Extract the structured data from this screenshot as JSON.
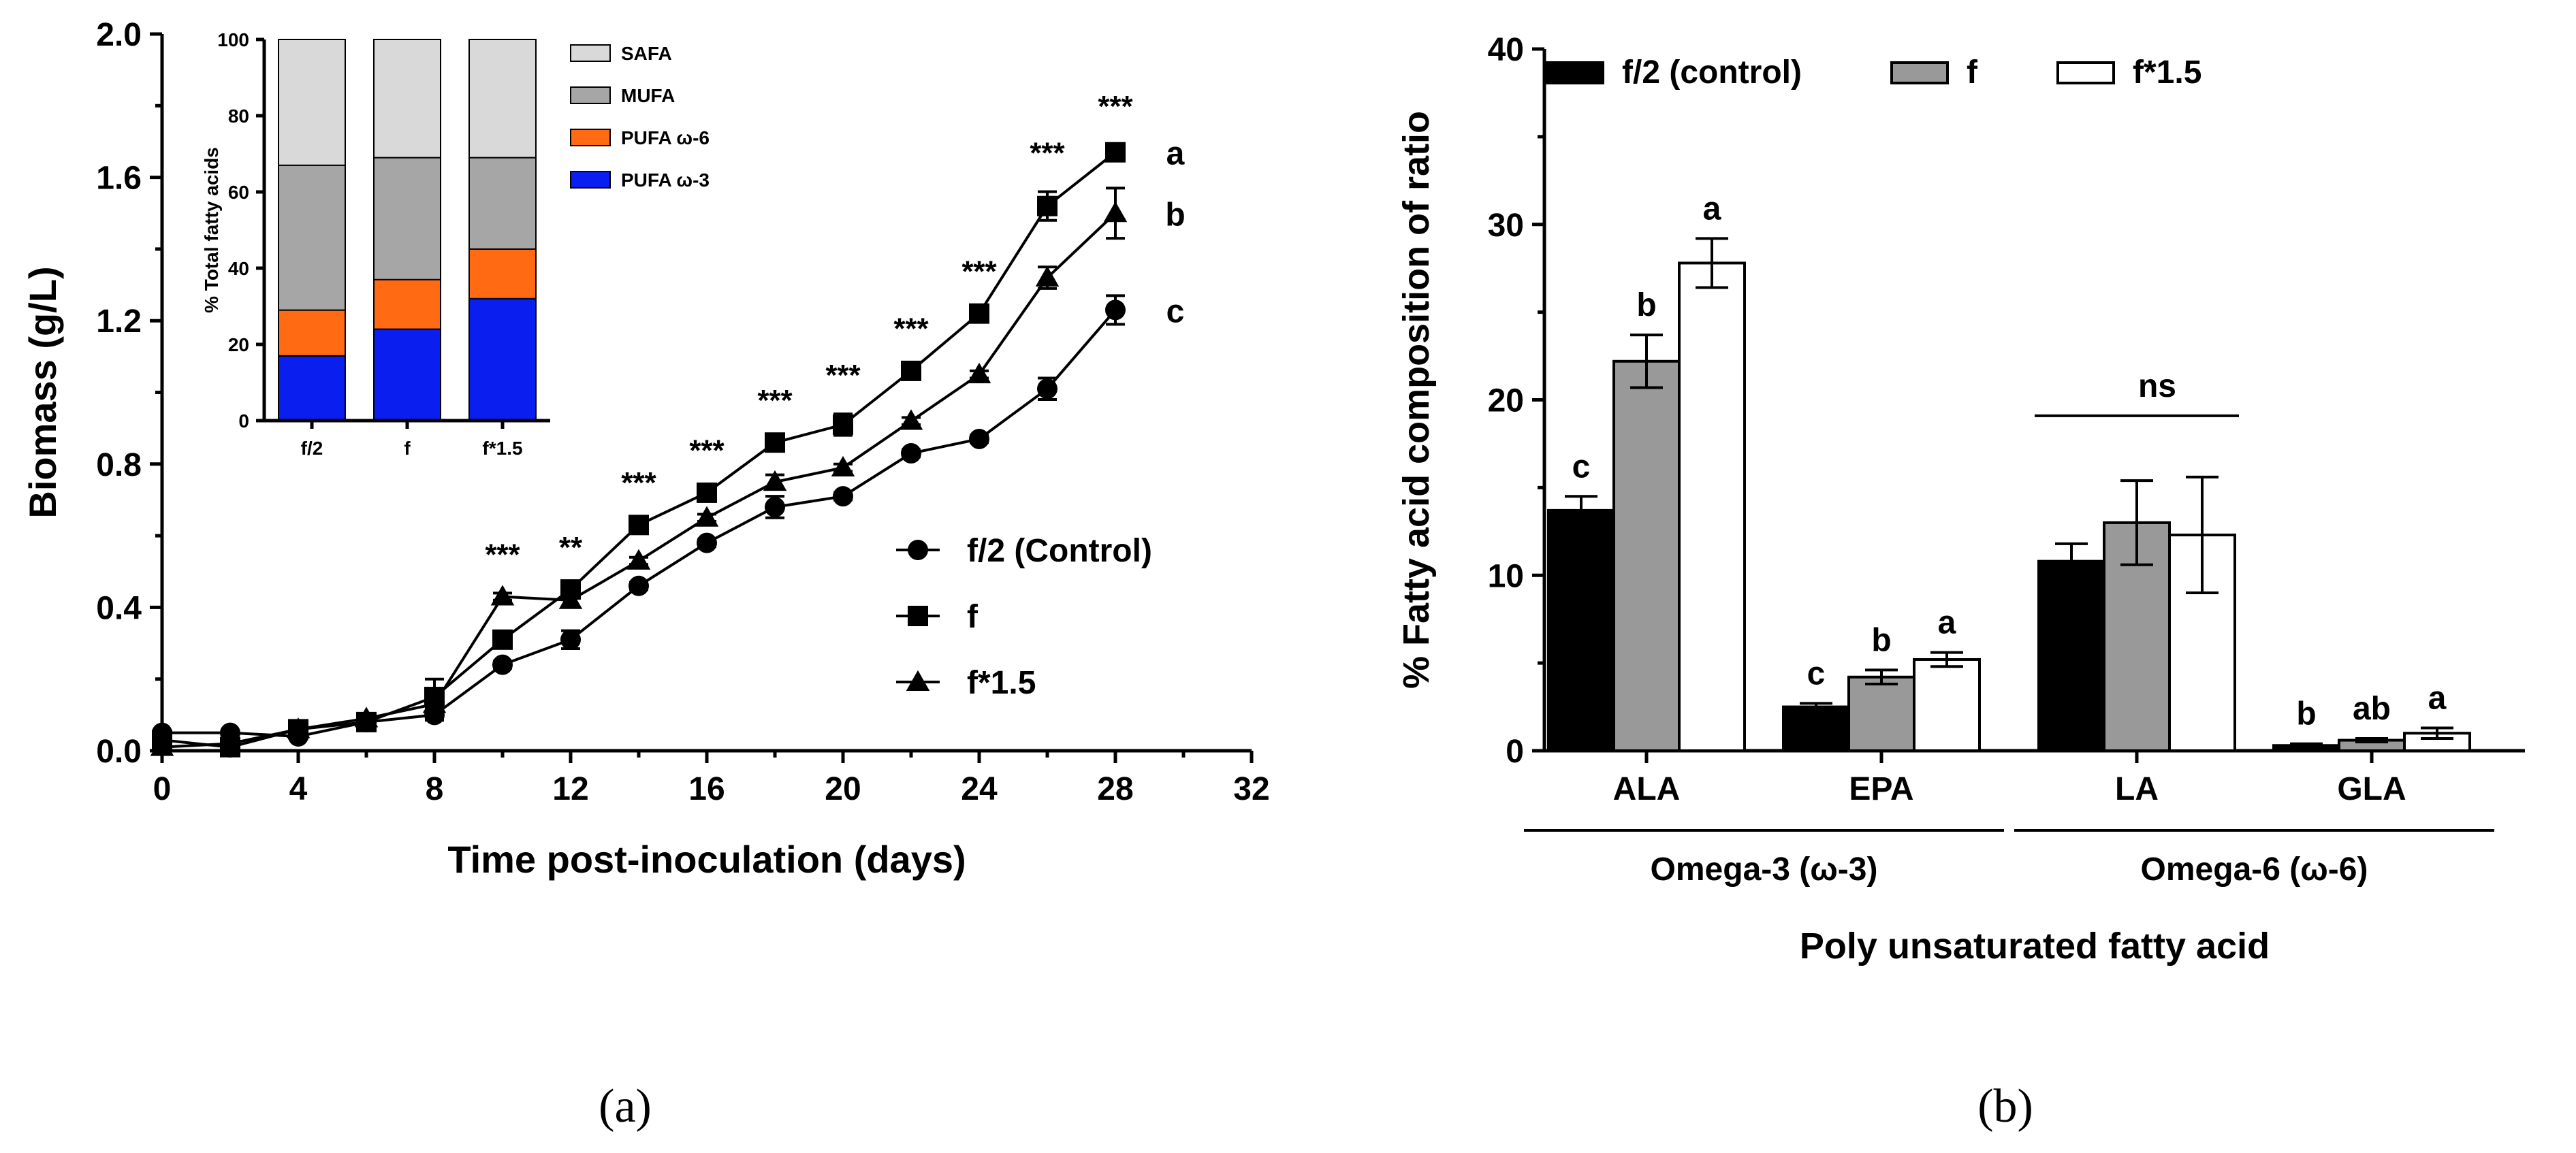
{
  "chart_data": [
    {
      "id": "a",
      "panel_label": "(a)",
      "type": "line",
      "xlabel": "Time post-inoculation (days)",
      "ylabel": "Biomass (g/L)",
      "xlim": [
        0,
        32
      ],
      "ylim": [
        0,
        2.0
      ],
      "xticks": [
        "0",
        "4",
        "8",
        "12",
        "16",
        "20",
        "24",
        "28",
        "32"
      ],
      "yticks": [
        "0.0",
        "0.4",
        "0.8",
        "1.2",
        "1.6",
        "2.0"
      ],
      "x": [
        0,
        2,
        4,
        6,
        8,
        10,
        12,
        14,
        16,
        18,
        20,
        22,
        24,
        26,
        28
      ],
      "series": [
        {
          "name": "f/2 (Control)",
          "marker": "circle",
          "values": [
            0.05,
            0.05,
            0.04,
            0.08,
            0.1,
            0.24,
            0.31,
            0.46,
            0.58,
            0.68,
            0.71,
            0.83,
            0.87,
            1.01,
            1.23
          ],
          "errors": [
            0.005,
            0.005,
            0.005,
            0.01,
            0.015,
            0.01,
            0.025,
            0.01,
            0.01,
            0.03,
            0.01,
            0.01,
            0.01,
            0.03,
            0.04
          ],
          "letter": "c"
        },
        {
          "name": "f",
          "marker": "square",
          "values": [
            0.03,
            0.01,
            0.06,
            0.08,
            0.15,
            0.31,
            0.45,
            0.63,
            0.72,
            0.86,
            0.91,
            1.06,
            1.22,
            1.52,
            1.67
          ],
          "errors": [
            0.005,
            0.005,
            0.005,
            0.01,
            0.05,
            0.01,
            0.01,
            0.01,
            0.01,
            0.01,
            0.03,
            0.01,
            0.01,
            0.04,
            0.02
          ],
          "letter": "a"
        },
        {
          "name": "f*1.5",
          "marker": "triangle",
          "values": [
            0.01,
            0.02,
            0.06,
            0.09,
            0.13,
            0.43,
            0.42,
            0.53,
            0.65,
            0.75,
            0.79,
            0.92,
            1.05,
            1.32,
            1.5
          ],
          "errors": [
            0.005,
            0.005,
            0.005,
            0.01,
            0.01,
            0.01,
            0.02,
            0.01,
            0.01,
            0.02,
            0.01,
            0.01,
            0.01,
            0.03,
            0.07
          ],
          "letter": "b"
        }
      ],
      "significance": [
        {
          "x": 10,
          "label": "***"
        },
        {
          "x": 12,
          "label": "**"
        },
        {
          "x": 14,
          "label": "***"
        },
        {
          "x": 16,
          "label": "***"
        },
        {
          "x": 18,
          "label": "***"
        },
        {
          "x": 20,
          "label": "***"
        },
        {
          "x": 22,
          "label": "***"
        },
        {
          "x": 24,
          "label": "***"
        },
        {
          "x": 26,
          "label": "***"
        },
        {
          "x": 28,
          "label": "***"
        }
      ],
      "legend": [
        "f/2 (Control)",
        "f",
        "f*1.5"
      ],
      "legend_position": "right"
    },
    {
      "id": "a-inset",
      "type": "bar",
      "stacked": true,
      "ylabel": "% Total fatty acids",
      "ylim": [
        0,
        100
      ],
      "yticks": [
        "0",
        "20",
        "40",
        "60",
        "80",
        "100"
      ],
      "categories": [
        "f/2",
        "f",
        "f*1.5"
      ],
      "series": [
        {
          "name": "PUFA ω-3",
          "color": "#0a1ef0",
          "values": [
            17,
            24,
            32
          ]
        },
        {
          "name": "PUFA ω-6",
          "color": "#ff6a13",
          "values": [
            12,
            13,
            13
          ]
        },
        {
          "name": "MUFA",
          "color": "#a6a6a6",
          "values": [
            38,
            32,
            24
          ]
        },
        {
          "name": "SAFA",
          "color": "#d9d9d9",
          "values": [
            33,
            31,
            31
          ]
        }
      ],
      "legend": [
        "SAFA",
        "MUFA",
        "PUFA ω-6",
        "PUFA ω-3"
      ],
      "legend_position": "right"
    },
    {
      "id": "b",
      "panel_label": "(b)",
      "type": "bar",
      "xlabel": "Poly unsaturated fatty acid",
      "ylabel": "% Fatty acid composition of ratio",
      "ylim": [
        0,
        40
      ],
      "yticks": [
        "0",
        "10",
        "20",
        "30",
        "40"
      ],
      "categories": [
        "ALA",
        "EPA",
        "LA",
        "GLA"
      ],
      "groups": [
        {
          "label": "Omega-3 (ω-3)",
          "categories": [
            "ALA",
            "EPA"
          ]
        },
        {
          "label": "Omega-6 (ω-6)",
          "categories": [
            "LA",
            "GLA"
          ]
        }
      ],
      "series": [
        {
          "name": "f/2 (control)",
          "color": "#000000",
          "values": [
            13.7,
            2.5,
            10.8,
            0.3
          ],
          "errors": [
            0.8,
            0.2,
            1.0,
            0.1
          ]
        },
        {
          "name": "f",
          "color": "#999999",
          "values": [
            22.2,
            4.2,
            13.0,
            0.6
          ],
          "errors": [
            1.5,
            0.4,
            2.4,
            0.1
          ]
        },
        {
          "name": "f*1.5",
          "color": "#ffffff",
          "values": [
            27.8,
            5.2,
            12.3,
            1.0
          ],
          "errors": [
            1.4,
            0.4,
            3.3,
            0.3
          ]
        }
      ],
      "letters": [
        [
          "c",
          "b",
          "a"
        ],
        [
          "c",
          "b",
          "a"
        ],
        [
          "",
          "",
          ""
        ],
        [
          "b",
          "ab",
          "a"
        ]
      ],
      "ns_label": "ns",
      "legend": [
        "f/2 (control)",
        "f",
        "f*1.5"
      ],
      "legend_position": "top"
    }
  ]
}
